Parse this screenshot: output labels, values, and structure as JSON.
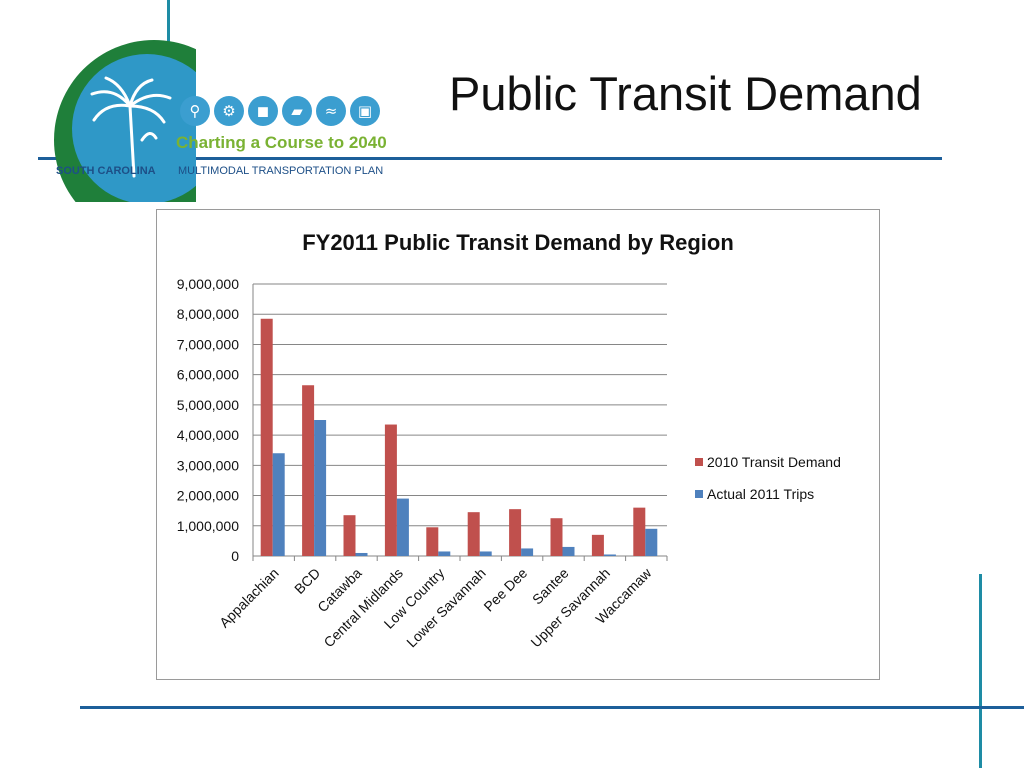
{
  "slide": {
    "title": "Public Transit Demand"
  },
  "logo": {
    "tagline": "Charting a Course to 2040",
    "state": "SOUTH CAROLINA",
    "plan": "MULTIMODAL TRANSPORTATION PLAN",
    "mode_icons": [
      "pedestrian-icon",
      "bicycle-icon",
      "car-icon",
      "truck-icon",
      "boat-icon",
      "bus-icon"
    ]
  },
  "colors": {
    "series_2010": "#c0504d",
    "series_2011": "#4f81bd",
    "rule": "#1d5f9a",
    "accent": "#1e8ca5"
  },
  "chart_data": {
    "type": "bar",
    "title": "FY2011 Public Transit Demand by Region",
    "xlabel": "",
    "ylabel": "",
    "ylim": [
      0,
      9000000
    ],
    "yticks": [
      "9,000,000",
      "8,000,000",
      "7,000,000",
      "6,000,000",
      "5,000,000",
      "4,000,000",
      "3,000,000",
      "2,000,000",
      "1,000,000",
      "0"
    ],
    "ytick_values": [
      9000000,
      8000000,
      7000000,
      6000000,
      5000000,
      4000000,
      3000000,
      2000000,
      1000000,
      0
    ],
    "grid": true,
    "legend_position": "right",
    "categories": [
      "Appalachian",
      "BCD",
      "Catawba",
      "Central Midlands",
      "Low Country",
      "Lower Savannah",
      "Pee Dee",
      "Santee",
      "Upper Savannah",
      "Waccamaw"
    ],
    "series": [
      {
        "name": "2010 Transit Demand",
        "values": [
          7850000,
          5650000,
          1350000,
          4350000,
          950000,
          1450000,
          1550000,
          1250000,
          700000,
          1600000
        ]
      },
      {
        "name": "Actual 2011 Trips",
        "values": [
          3400000,
          4500000,
          100000,
          1900000,
          150000,
          150000,
          250000,
          300000,
          50000,
          900000
        ]
      }
    ]
  }
}
